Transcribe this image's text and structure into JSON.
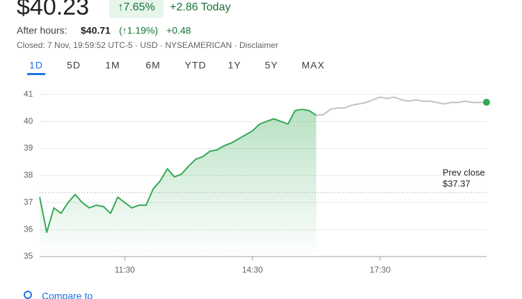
{
  "header": {
    "price": "$40.23",
    "change_pct": "↑7.65%",
    "change": "+2.86 Today",
    "after_hours_label": "After hours:",
    "after_hours_price": "$40.71",
    "after_hours_pct": "(↑1.19%)",
    "after_hours_change": "+0.48",
    "closed_info": "Closed: 7 Nov, 19:59:52 UTC-5 · USD · NYSEAMERICAN · Disclaimer"
  },
  "tabs": {
    "items": [
      "1D",
      "5D",
      "1M",
      "6M",
      "YTD",
      "1Y",
      "5Y",
      "MAX"
    ],
    "selected": 0
  },
  "compare": "Compare to",
  "chart_data": {
    "type": "line",
    "x": [
      "09:30",
      "09:40",
      "09:50",
      "10:00",
      "10:10",
      "10:20",
      "10:30",
      "10:40",
      "10:50",
      "11:00",
      "11:10",
      "11:20",
      "11:30",
      "11:40",
      "11:50",
      "12:00",
      "12:10",
      "12:20",
      "12:30",
      "12:40",
      "12:50",
      "13:00",
      "13:10",
      "13:20",
      "13:30",
      "13:40",
      "13:50",
      "14:00",
      "14:10",
      "14:20",
      "14:30",
      "14:40",
      "14:50",
      "15:00",
      "15:10",
      "15:20",
      "15:30",
      "15:40",
      "15:50",
      "16:00",
      "16:10",
      "16:20",
      "16:30",
      "16:40",
      "16:50",
      "17:00",
      "17:10",
      "17:20",
      "17:30",
      "17:40",
      "17:50",
      "18:00",
      "18:10",
      "18:20",
      "18:30",
      "18:40",
      "18:50",
      "19:00",
      "19:10",
      "19:20",
      "19:30",
      "19:40",
      "19:50",
      "20:00"
    ],
    "series": [
      {
        "color": "#34a853",
        "values": [
          37.2,
          35.9,
          36.8,
          36.6,
          37.0,
          37.3,
          37.0,
          36.8,
          36.9,
          36.85,
          36.6,
          37.2,
          37.0,
          36.8,
          36.9,
          36.9,
          37.5,
          37.8,
          38.25,
          37.95,
          38.05,
          38.35,
          38.6,
          38.7,
          38.9,
          38.95,
          39.1,
          39.2,
          39.35,
          39.5,
          39.65,
          39.9,
          40.0,
          40.1,
          40.0,
          39.9,
          40.4,
          40.45,
          40.4,
          40.23,
          null,
          null,
          null,
          null,
          null,
          null,
          null,
          null,
          null,
          null,
          null,
          null,
          null,
          null,
          null,
          null,
          null,
          null,
          null,
          null,
          null,
          null,
          null,
          null
        ]
      },
      {
        "color": "#bdc1c6",
        "values": [
          null,
          null,
          null,
          null,
          null,
          null,
          null,
          null,
          null,
          null,
          null,
          null,
          null,
          null,
          null,
          null,
          null,
          null,
          null,
          null,
          null,
          null,
          null,
          null,
          null,
          null,
          null,
          null,
          null,
          null,
          null,
          null,
          null,
          null,
          null,
          null,
          null,
          null,
          null,
          40.23,
          40.25,
          40.45,
          40.5,
          40.5,
          40.6,
          40.65,
          40.7,
          40.8,
          40.9,
          40.85,
          40.9,
          40.8,
          40.75,
          40.8,
          40.75,
          40.75,
          40.7,
          40.65,
          40.7,
          40.7,
          40.75,
          40.7,
          40.7,
          40.71
        ]
      }
    ],
    "xlim": [
      "09:30",
      "20:00"
    ],
    "xticks": [
      "11:30",
      "14:30",
      "17:30"
    ],
    "ylim": [
      35,
      41.2
    ],
    "yticks": [
      35,
      36,
      37,
      38,
      39,
      40,
      41
    ],
    "grid": true,
    "prev_close": {
      "label": "Prev close",
      "value": 37.37,
      "value_label": "$37.37"
    }
  }
}
